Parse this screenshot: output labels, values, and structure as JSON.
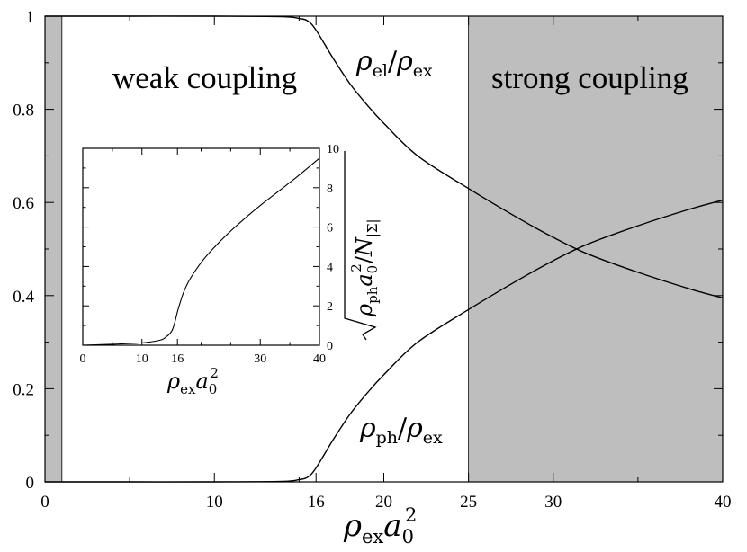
{
  "colors": {
    "shade": "#bebebe",
    "line": "#000000",
    "background": "#ffffff"
  },
  "chart_data": [
    {
      "type": "line",
      "xlabel": "ρ_ex a_0^2",
      "ylabel": "",
      "xlim": [
        0,
        40
      ],
      "ylim": [
        0,
        1
      ],
      "xticks": [
        0,
        10,
        16,
        20,
        25,
        30,
        40
      ],
      "yticks": [
        0,
        0.2,
        0.4,
        0.6,
        0.8,
        1
      ],
      "xtick_labels": [
        "0",
        "10",
        "16",
        "20",
        "25",
        "30",
        "40"
      ],
      "ytick_labels": [
        "0",
        "0.2",
        "0.4",
        "0.6",
        "0.8",
        "1"
      ],
      "shaded_regions": [
        {
          "x": [
            0,
            1
          ]
        },
        {
          "x": [
            25,
            40
          ],
          "label": "strong coupling"
        }
      ],
      "annotations": [
        "weak coupling",
        "strong coupling"
      ],
      "series": [
        {
          "name": "ρ_el/ρ_ex",
          "x": [
            0,
            5,
            10,
            14,
            15,
            15.5,
            16,
            17,
            18,
            19,
            20,
            22,
            25,
            28,
            30,
            32,
            35,
            38,
            40
          ],
          "values": [
            1.0,
            1.0,
            1.0,
            0.999,
            0.995,
            0.99,
            0.97,
            0.91,
            0.855,
            0.81,
            0.77,
            0.7,
            0.63,
            0.565,
            0.525,
            0.49,
            0.45,
            0.415,
            0.395
          ]
        },
        {
          "name": "ρ_ph/ρ_ex",
          "x": [
            0,
            5,
            10,
            14,
            15,
            15.5,
            16,
            17,
            18,
            19,
            20,
            22,
            25,
            28,
            30,
            32,
            35,
            38,
            40
          ],
          "values": [
            0.0,
            0.0,
            0.0,
            0.001,
            0.005,
            0.01,
            0.03,
            0.09,
            0.145,
            0.19,
            0.23,
            0.3,
            0.37,
            0.435,
            0.475,
            0.51,
            0.55,
            0.585,
            0.605
          ]
        }
      ]
    },
    {
      "type": "line",
      "inset": true,
      "xlabel": "ρ_ex a_0^2",
      "ylabel": "√(ρ_ph a_0^2 / N_|Σ|)",
      "xlim": [
        0,
        40
      ],
      "ylim": [
        0,
        10
      ],
      "xticks": [
        0,
        10,
        16,
        30,
        40
      ],
      "yticks": [
        0,
        2,
        4,
        6,
        8,
        10
      ],
      "xtick_labels": [
        "0",
        "10",
        "16",
        "30",
        "40"
      ],
      "ytick_labels": [
        "0",
        "2",
        "4",
        "6",
        "8",
        "10"
      ],
      "series": [
        {
          "name": "",
          "x": [
            0,
            5,
            10,
            13,
            14,
            15,
            15.5,
            16,
            16.5,
            17,
            18,
            20,
            22,
            25,
            28,
            30,
            33,
            36,
            38,
            40
          ],
          "values": [
            0,
            0.05,
            0.12,
            0.25,
            0.4,
            0.7,
            1.1,
            1.7,
            2.2,
            2.65,
            3.3,
            4.2,
            4.9,
            5.8,
            6.6,
            7.1,
            7.8,
            8.5,
            9.0,
            9.5
          ]
        }
      ]
    }
  ],
  "labels": {
    "weak": "weak coupling",
    "strong": "strong coupling",
    "rho": "ρ",
    "sub_el": "el",
    "sub_ex": "ex",
    "sub_ph": "ph",
    "slash": "/",
    "a": "a",
    "sub_0": "0",
    "sup_2": "2",
    "N": "N",
    "sub_sigma": "|Σ|"
  }
}
